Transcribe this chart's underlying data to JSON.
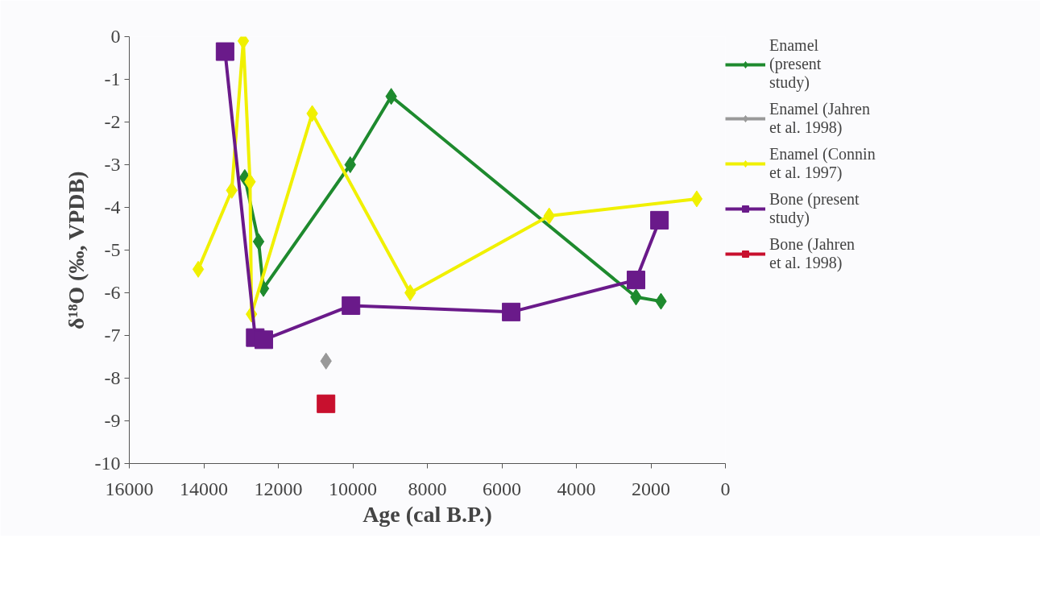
{
  "chart_data": {
    "type": "line",
    "xlabel": "Age (cal B.P.)",
    "ylabel": "δ¹⁸O (‰, VPDB)",
    "xlim": [
      16000,
      0
    ],
    "xticks": [
      16000,
      14000,
      12000,
      10000,
      8000,
      6000,
      4000,
      2000,
      0
    ],
    "ylim": [
      -10,
      0
    ],
    "yticks": [
      0,
      -1,
      -2,
      -3,
      -4,
      -5,
      -6,
      -7,
      -8,
      -9,
      -10
    ],
    "grid": false,
    "legend": "right",
    "series": [
      {
        "name": "Enamel (present study)",
        "color": "#1e8a2e",
        "marker": "diamond",
        "x": [
          12900,
          12530,
          12400,
          10070,
          8970,
          2400,
          1730
        ],
        "values": [
          -3.3,
          -4.8,
          -5.9,
          -3.0,
          -1.4,
          -6.1,
          -6.2
        ]
      },
      {
        "name": "Enamel (Jahren et al. 1998)",
        "color": "#999999",
        "marker": "diamond",
        "x": [
          10720
        ],
        "values": [
          -7.6
        ]
      },
      {
        "name": "Enamel (Connin et al. 1997)",
        "color": "#f0f000",
        "marker": "diamond",
        "x": [
          14150,
          13250,
          12940,
          12760,
          12720,
          11090,
          8460,
          4730,
          770
        ],
        "values": [
          -5.45,
          -3.6,
          -0.1,
          -3.4,
          -6.5,
          -1.8,
          -6.0,
          -4.2,
          -3.8
        ]
      },
      {
        "name": "Bone (present study)",
        "color": "#6a1a8a",
        "marker": "square",
        "x": [
          13430,
          12620,
          12390,
          10050,
          5750,
          2400,
          1770
        ],
        "values": [
          -0.35,
          -7.05,
          -7.1,
          -6.3,
          -6.45,
          -5.7,
          -4.3
        ]
      },
      {
        "name": "Bone (Jahren et al. 1998)",
        "color": "#c8102e",
        "marker": "square",
        "x": [
          10720
        ],
        "values": [
          -8.6
        ]
      }
    ]
  }
}
